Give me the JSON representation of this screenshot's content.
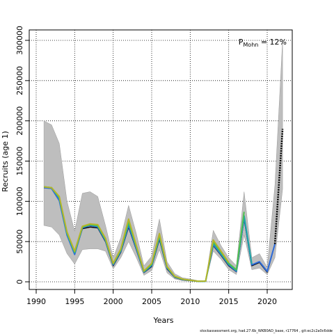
{
  "chart_data": {
    "type": "line",
    "xlabel": "Years",
    "ylabel": "Recruits (age 1)",
    "xlim": [
      1990,
      2022.5
    ],
    "ylim": [
      0,
      300000
    ],
    "x_ticks": [
      1990,
      1995,
      2000,
      2005,
      2010,
      2015,
      2020
    ],
    "y_ticks": [
      0,
      50000,
      100000,
      150000,
      200000,
      250000,
      300000
    ],
    "y_tick_labels": [
      "0",
      "50000",
      "100000",
      "150000",
      "200000",
      "250000",
      "300000"
    ],
    "grid": true,
    "annotation": {
      "main": "P",
      "sub": "Mohn",
      "value": " = 12%"
    },
    "source_note": "stockassessment.org, had.27.6b_WKB0AD_base, r17764 , git:ec2c2a0c6dde",
    "band": {
      "x": [
        1991,
        1992,
        1993,
        1994,
        1995,
        1996,
        1997,
        1998,
        1999,
        2000,
        2001,
        2002,
        2003,
        2004,
        2005,
        2006,
        2007,
        2008,
        2009,
        2010,
        2011,
        2012,
        2013,
        2014,
        2015,
        2016,
        2017,
        2018,
        2019,
        2020,
        2021,
        2022
      ],
      "upper": [
        200000,
        195000,
        172000,
        100000,
        63000,
        110000,
        112000,
        106000,
        70000,
        30000,
        55000,
        95000,
        60000,
        20000,
        32000,
        78000,
        25000,
        10000,
        5000,
        3500,
        1500,
        1500,
        64000,
        45000,
        30000,
        20000,
        112000,
        30000,
        35000,
        18000,
        120000,
        300000
      ],
      "lower": [
        70000,
        68000,
        58000,
        35000,
        22000,
        40000,
        41000,
        41000,
        38000,
        16000,
        30000,
        50000,
        30000,
        8000,
        14000,
        40000,
        11000,
        3500,
        1500,
        800,
        200,
        300,
        38000,
        28000,
        15000,
        9000,
        58000,
        15000,
        17000,
        9000,
        30000,
        115000
      ]
    },
    "series": [
      {
        "color": "#000000",
        "values": [
          117000,
          116000,
          106000,
          60000,
          35000,
          66000,
          68000,
          67000,
          50000,
          20000,
          37000,
          68000,
          40000,
          11500,
          19000,
          53000,
          16000,
          5500,
          2500,
          1500,
          500,
          600,
          45000,
          33000,
          20000,
          12500,
          78000,
          20000,
          24000,
          12000,
          47000,
          null
        ]
      },
      {
        "color": "#2d6bdb",
        "values": [
          117000,
          116000,
          101000,
          58000,
          34000,
          67000,
          70000,
          68000,
          51000,
          21000,
          38000,
          70000,
          41000,
          12000,
          20000,
          55000,
          17000,
          6000,
          2800,
          1700,
          600,
          700,
          46000,
          34000,
          21000,
          13000,
          80000,
          21000,
          25000,
          13000,
          47000,
          null
        ]
      },
      {
        "color": "#1fa6a6",
        "values": [
          118000,
          117000,
          104000,
          60000,
          36000,
          68000,
          71000,
          69000,
          52000,
          22000,
          39000,
          73000,
          43000,
          12500,
          21000,
          56000,
          18000,
          6200,
          3000,
          1800,
          650,
          750,
          48000,
          35000,
          22000,
          14000,
          82000,
          22000,
          null,
          null,
          null,
          null
        ]
      },
      {
        "color": "#4fc04f",
        "values": [
          118000,
          117000,
          105000,
          61000,
          37000,
          68000,
          71000,
          70000,
          53000,
          22500,
          40000,
          75000,
          44000,
          13000,
          22000,
          58000,
          18500,
          6500,
          3200,
          1900,
          700,
          800,
          50000,
          37000,
          23000,
          15000,
          87000,
          null,
          null,
          null,
          null,
          null
        ]
      },
      {
        "color": "#b5b52a",
        "values": [
          118000,
          117000,
          106000,
          62000,
          38000,
          69000,
          72000,
          71000,
          54000,
          23000,
          41000,
          78000,
          45000,
          13500,
          23000,
          60000,
          19000,
          6800,
          3400,
          2000,
          750,
          850,
          52000,
          38000,
          24000,
          null,
          null,
          null,
          null,
          null,
          null,
          null
        ]
      }
    ],
    "projection": {
      "x": [
        2021,
        2022
      ],
      "values": [
        47000,
        190000
      ]
    }
  }
}
